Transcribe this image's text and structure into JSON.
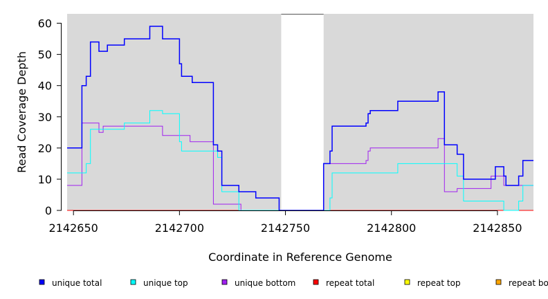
{
  "chart_data": {
    "type": "line",
    "step": true,
    "xlabel": "Coordinate in Reference Genome",
    "ylabel": "Read Coverage Depth",
    "xlim": [
      2142647,
      2142867
    ],
    "ylim": [
      0,
      63
    ],
    "x_ticks": [
      2142650,
      2142700,
      2142750,
      2142800,
      2142850
    ],
    "x_tick_labels": [
      "2142650",
      "2142700",
      "2142750",
      "2142800",
      "2142850"
    ],
    "y_ticks": [
      0,
      10,
      20,
      30,
      40,
      50,
      60
    ],
    "y_tick_labels": [
      "0",
      "10",
      "20",
      "30",
      "40",
      "50",
      "60"
    ],
    "grid": false,
    "background": "#d9d9d9",
    "gap_region": [
      2142748,
      2142768
    ],
    "legend_position": "bottom",
    "series": [
      {
        "name": "unique total",
        "color": "#0000ff",
        "points": [
          [
            2142647,
            20
          ],
          [
            2142651,
            20
          ],
          [
            2142652,
            20
          ],
          [
            2142653,
            20
          ],
          [
            2142654,
            40
          ],
          [
            2142655,
            40
          ],
          [
            2142656,
            43
          ],
          [
            2142657,
            43
          ],
          [
            2142658,
            54
          ],
          [
            2142662,
            51
          ],
          [
            2142664,
            51
          ],
          [
            2142666,
            53
          ],
          [
            2142674,
            55
          ],
          [
            2142686,
            59
          ],
          [
            2142692,
            55
          ],
          [
            2142699,
            55
          ],
          [
            2142700,
            47
          ],
          [
            2142701,
            43
          ],
          [
            2142705,
            43
          ],
          [
            2142706,
            41
          ],
          [
            2142716,
            21
          ],
          [
            2142717,
            21
          ],
          [
            2142718,
            19
          ],
          [
            2142720,
            8
          ],
          [
            2142728,
            6
          ],
          [
            2142736,
            4
          ],
          [
            2142747,
            0
          ],
          [
            2142767,
            0
          ],
          [
            2142768,
            15
          ],
          [
            2142771,
            19
          ],
          [
            2142772,
            27
          ],
          [
            2142788,
            28
          ],
          [
            2142789,
            31
          ],
          [
            2142790,
            32
          ],
          [
            2142798,
            32
          ],
          [
            2142803,
            35
          ],
          [
            2142819,
            35
          ],
          [
            2142822,
            38
          ],
          [
            2142825,
            21
          ],
          [
            2142831,
            18
          ],
          [
            2142834,
            10
          ],
          [
            2142849,
            14
          ],
          [
            2142853,
            11
          ],
          [
            2142854,
            8
          ],
          [
            2142860,
            11
          ],
          [
            2142862,
            16
          ],
          [
            2142867,
            16
          ]
        ]
      },
      {
        "name": "unique top",
        "color": "#00ffff",
        "points": [
          [
            2142647,
            12
          ],
          [
            2142656,
            15
          ],
          [
            2142658,
            26
          ],
          [
            2142662,
            26
          ],
          [
            2142664,
            26
          ],
          [
            2142674,
            28
          ],
          [
            2142686,
            32
          ],
          [
            2142692,
            31
          ],
          [
            2142699,
            31
          ],
          [
            2142700,
            22
          ],
          [
            2142701,
            19
          ],
          [
            2142716,
            19
          ],
          [
            2142718,
            17
          ],
          [
            2142720,
            6
          ],
          [
            2142728,
            0
          ],
          [
            2142767,
            0
          ],
          [
            2142769,
            0
          ],
          [
            2142771,
            4
          ],
          [
            2142772,
            12
          ],
          [
            2142803,
            15
          ],
          [
            2142831,
            11
          ],
          [
            2142834,
            3
          ],
          [
            2142853,
            0
          ],
          [
            2142860,
            3
          ],
          [
            2142862,
            8
          ],
          [
            2142867,
            8
          ]
        ]
      },
      {
        "name": "unique bottom",
        "color": "#a020f0",
        "points": [
          [
            2142647,
            8
          ],
          [
            2142654,
            28
          ],
          [
            2142662,
            25
          ],
          [
            2142664,
            27
          ],
          [
            2142692,
            24
          ],
          [
            2142705,
            22
          ],
          [
            2142716,
            2
          ],
          [
            2142729,
            0
          ],
          [
            2142767,
            0
          ],
          [
            2142768,
            15
          ],
          [
            2142788,
            16
          ],
          [
            2142789,
            19
          ],
          [
            2142790,
            20
          ],
          [
            2142822,
            23
          ],
          [
            2142825,
            6
          ],
          [
            2142831,
            7
          ],
          [
            2142847,
            11
          ],
          [
            2142853,
            8
          ],
          [
            2142867,
            8
          ]
        ]
      },
      {
        "name": "repeat total",
        "color": "#ff0000",
        "points": [
          [
            2142647,
            0
          ],
          [
            2142867,
            0
          ]
        ]
      },
      {
        "name": "repeat top",
        "color": "#ffff00",
        "points": [
          [
            2142647,
            0
          ],
          [
            2142867,
            0
          ]
        ]
      },
      {
        "name": "repeat bottom",
        "color": "#ffa500",
        "points": [
          [
            2142647,
            0
          ],
          [
            2142867,
            0
          ]
        ]
      }
    ]
  }
}
